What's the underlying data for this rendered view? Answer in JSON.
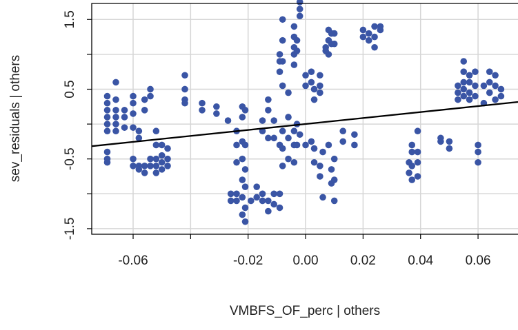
{
  "chart_data": {
    "type": "scatter",
    "x_label": "VMBFS_OF_perc | others",
    "y_label": "sev_residuals | others",
    "xlim": [
      -0.0744,
      0.0739
    ],
    "ylim": [
      -1.58,
      1.73
    ],
    "xticks": [
      -0.06,
      -0.02,
      {
        "value": 0,
        "label": "0.00"
      },
      0.02,
      0.04,
      0.06
    ],
    "yticks": [
      -1.5,
      -0.5,
      0.5,
      1.5
    ],
    "xgrid": [
      -0.06,
      -0.04,
      -0.02,
      0,
      0.02,
      0.04,
      0.06
    ],
    "ygrid": [
      -1.5,
      -1,
      -0.5,
      0,
      0.5,
      1,
      1.5
    ],
    "grid": true,
    "color": "#3a55a5",
    "fit_line": {
      "x": [
        -0.0744,
        0.0739
      ],
      "y": [
        -0.317,
        0.317
      ],
      "color": "#000000"
    },
    "x": [
      -0.069,
      -0.069,
      -0.069,
      -0.069,
      -0.069,
      -0.069,
      -0.069,
      -0.069,
      -0.069,
      -0.066,
      -0.066,
      -0.066,
      -0.066,
      -0.066,
      -0.066,
      -0.063,
      -0.063,
      -0.063,
      -0.06,
      -0.06,
      -0.06,
      -0.06,
      -0.06,
      -0.06,
      -0.058,
      -0.058,
      -0.058,
      -0.058,
      -0.056,
      -0.056,
      -0.056,
      -0.056,
      -0.054,
      -0.054,
      -0.054,
      -0.054,
      -0.052,
      -0.052,
      -0.052,
      -0.052,
      -0.052,
      -0.05,
      -0.05,
      -0.05,
      -0.05,
      -0.048,
      -0.048,
      -0.048,
      -0.042,
      -0.042,
      -0.042,
      -0.042,
      -0.036,
      -0.036,
      -0.031,
      -0.031,
      -0.027,
      -0.026,
      -0.026,
      -0.024,
      -0.024,
      -0.024,
      -0.024,
      -0.024,
      -0.022,
      -0.022,
      -0.022,
      -0.022,
      -0.022,
      -0.022,
      -0.022,
      -0.021,
      -0.021,
      -0.021,
      -0.021,
      -0.021,
      -0.021,
      -0.019,
      -0.017,
      -0.017,
      -0.015,
      -0.015,
      -0.015,
      -0.015,
      -0.013,
      -0.013,
      -0.013,
      -0.013,
      -0.013,
      -0.011,
      -0.011,
      -0.011,
      -0.011,
      -0.009,
      -0.009,
      -0.009,
      -0.009,
      -0.009,
      -0.009,
      -0.008,
      -0.008,
      -0.008,
      -0.008,
      -0.008,
      -0.008,
      -0.008,
      -0.006,
      -0.006,
      -0.006,
      -0.006,
      -0.004,
      -0.004,
      -0.004,
      -0.004,
      -0.004,
      -0.004,
      -0.004,
      -0.004,
      -0.003,
      -0.003,
      -0.003,
      -0.003,
      -0.002,
      -0.002,
      -0.002,
      -0.002,
      0,
      0,
      0,
      0.002,
      0.002,
      0.002,
      0.003,
      0.003,
      0.003,
      0.003,
      0.005,
      0.005,
      0.005,
      0.005,
      0.005,
      0.006,
      0.006,
      0.007,
      0.007,
      0.008,
      0.008,
      0.008,
      0.008,
      0.009,
      0.009,
      0.009,
      0.009,
      0.01,
      0.01,
      0.01,
      0.01,
      0.01,
      0.013,
      0.013,
      0.017,
      0.017,
      0.02,
      0.02,
      0.022,
      0.022,
      0.024,
      0.024,
      0.024,
      0.026,
      0.026,
      0.036,
      0.036,
      0.037,
      0.037,
      0.037,
      0.037,
      0.039,
      0.039,
      0.039,
      0.039,
      0.047,
      0.047,
      0.05,
      0.05,
      0.053,
      0.053,
      0.053,
      0.055,
      0.055,
      0.055,
      0.055,
      0.055,
      0.057,
      0.057,
      0.057,
      0.057,
      0.059,
      0.059,
      0.059,
      0.06,
      0.06,
      0.06,
      0.062,
      0.062,
      0.064,
      0.064,
      0.064,
      0.066,
      0.066,
      0.066,
      0.068,
      0.068
    ],
    "values": [
      0.4,
      0.3,
      0.2,
      0.1,
      0,
      -0.1,
      -0.4,
      -0.5,
      -0.55,
      0.6,
      0.35,
      0.2,
      0.1,
      0,
      -0.1,
      0.2,
      0.1,
      -0.05,
      0.4,
      0.3,
      0.15,
      -0.05,
      -0.5,
      -0.6,
      -0.2,
      -0.6,
      -0.65,
      -0.1,
      0.35,
      0.2,
      -0.6,
      -0.7,
      0.5,
      0.4,
      -0.5,
      -0.6,
      -0.1,
      -0.3,
      -0.5,
      -0.6,
      -0.7,
      -0.3,
      -0.45,
      -0.55,
      -0.65,
      -0.35,
      -0.5,
      -0.6,
      0.7,
      0.5,
      0.35,
      0.3,
      0.3,
      0.2,
      0.25,
      0.15,
      0.05,
      -1,
      -1.1,
      -0.1,
      -0.3,
      -0.55,
      -1,
      -1.1,
      0.25,
      0.1,
      -0.25,
      -0.5,
      -0.8,
      -1.05,
      -1.3,
      0.2,
      -0.3,
      -0.65,
      -0.9,
      -1.2,
      -1.4,
      -1.1,
      -0.9,
      -1.05,
      0.05,
      -0.1,
      -1,
      -1.1,
      0.35,
      0.2,
      -0.2,
      -1.1,
      -1.25,
      0.05,
      -0.2,
      -1,
      -1.15,
      1,
      0.9,
      0.75,
      -0.3,
      -1,
      -1.2,
      1.5,
      1.2,
      0.9,
      0.55,
      -0.1,
      -0.35,
      -0.6,
      0.45,
      0.1,
      -0.2,
      -0.5,
      1.4,
      1.25,
      1.1,
      1,
      0.85,
      -0.1,
      -0.3,
      -0.55,
      1.2,
      1.05,
      0,
      -0.3,
      1.75,
      1.65,
      1.55,
      -0.15,
      0.7,
      0.55,
      -0.3,
      0.75,
      0.6,
      -0.25,
      0.5,
      0.35,
      -0.35,
      -0.55,
      0.7,
      0.55,
      0.45,
      -0.6,
      -0.75,
      -1.05,
      -0.4,
      1.1,
      1.05,
      1.35,
      1.2,
      1,
      -0.3,
      1.3,
      1.15,
      -0.65,
      -0.85,
      1.3,
      1.15,
      -0.5,
      -0.8,
      -1.1,
      -0.1,
      -0.25,
      -0.15,
      -0.3,
      1.35,
      1.25,
      1.3,
      1.2,
      1.25,
      1.1,
      1.4,
      1.4,
      1.35,
      -0.55,
      -0.7,
      -0.4,
      -0.6,
      -0.8,
      -0.3,
      -0.1,
      -0.4,
      -0.55,
      -0.75,
      -0.2,
      -0.25,
      -0.25,
      -0.35,
      0.55,
      0.45,
      0.35,
      0.9,
      0.75,
      0.6,
      0.5,
      0.4,
      0.7,
      0.6,
      0.45,
      0.35,
      0.75,
      0.55,
      0.4,
      -0.3,
      -0.4,
      -0.55,
      0.55,
      0.3,
      0.75,
      0.6,
      0.45,
      0.7,
      0.55,
      0.35,
      0.5,
      0.4
    ]
  }
}
